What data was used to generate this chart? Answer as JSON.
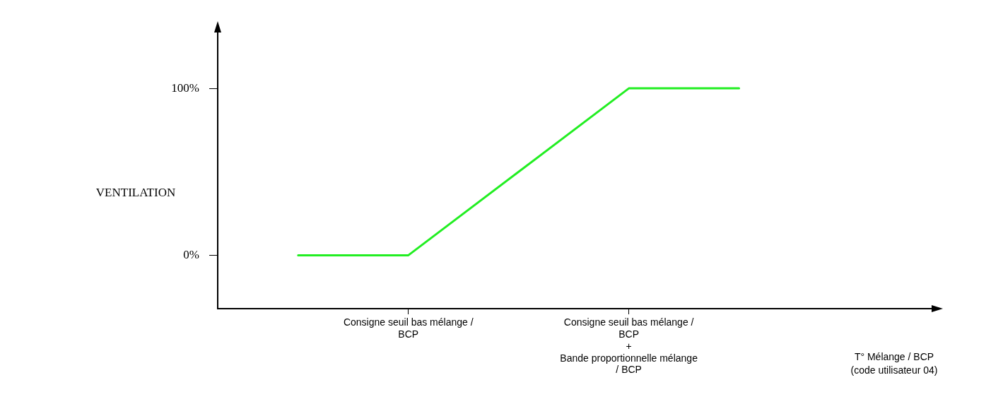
{
  "chart_data": {
    "type": "line",
    "ylabel": "VENTILATION",
    "annotations": [
      "T° Mélange / BCP\n(code utilisateur 04)"
    ],
    "categories": [
      null,
      "Consigne seuil bas mélange /\nBCP",
      null,
      "Consigne seuil bas mélange /\nBCP\n+\nBande proportionnelle mélange\n/ BCP",
      null
    ],
    "series": [
      {
        "color": "#22ee22",
        "values": [
          0,
          0,
          50,
          100,
          100
        ]
      }
    ],
    "ylim": [
      -32,
      136
    ],
    "yticks": [
      {
        "value": 0,
        "label": "0%"
      },
      {
        "value": 100,
        "label": "100%"
      }
    ],
    "legend": false,
    "marker": "none",
    "line_style": "solid"
  }
}
